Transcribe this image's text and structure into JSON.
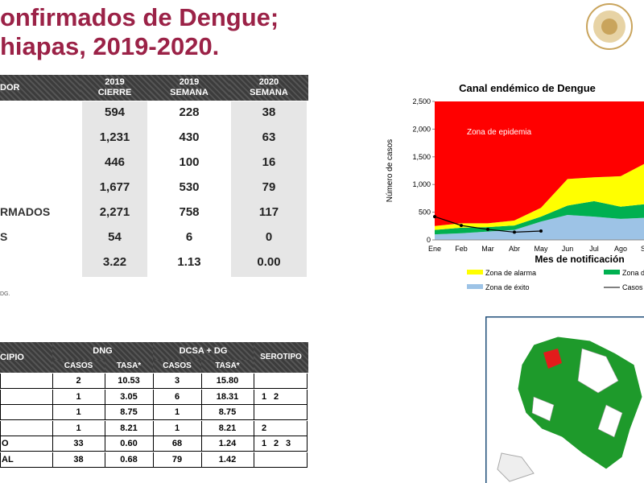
{
  "header": {
    "title_lines": [
      "onfirmados de Dengue;",
      "hiapas, 2019-2020."
    ]
  },
  "table1": {
    "columns": [
      "DOR",
      "2019 CIERRE",
      "2019 SEMANA",
      "2020 SEMANA"
    ],
    "rows": [
      {
        "values": [
          594,
          228,
          38
        ]
      },
      {
        "values": [
          "1,231",
          430,
          63
        ]
      },
      {
        "values": [
          446,
          100,
          16
        ]
      },
      {
        "values": [
          "1,677",
          530,
          79
        ]
      },
      {
        "label": "RMADOS",
        "values": [
          "2,271",
          758,
          117
        ]
      },
      {
        "label": "S",
        "values": [
          54,
          6,
          0
        ]
      },
      {
        "values": [
          "3.22",
          "1.13",
          "0.00"
        ]
      }
    ],
    "note": "DG."
  },
  "table2": {
    "columns": [
      "CIPIO",
      "DNG",
      "DCSA + DG",
      "SEROTIPO"
    ],
    "subcolumns": [
      "CASOS",
      "TASA*",
      "CASOS",
      "TASA*"
    ],
    "rows": [
      {
        "values": [
          2,
          "10.53",
          3,
          "15.80"
        ]
      },
      {
        "values": [
          1,
          "3.05",
          6,
          "18.31"
        ],
        "serotipo": [
          1,
          2
        ]
      },
      {
        "values": [
          1,
          "8.75",
          1,
          "8.75"
        ]
      },
      {
        "values": [
          1,
          "8.21",
          1,
          "8.21"
        ],
        "serotipo": [
          2
        ]
      },
      {
        "label": "O",
        "values": [
          33,
          "0.60",
          68,
          "1.24"
        ],
        "serotipo": [
          1,
          2,
          3
        ]
      },
      {
        "label": "AL",
        "values": [
          38,
          "0.68",
          79,
          "1.42"
        ]
      }
    ]
  },
  "chart_data": {
    "type": "stacked-area",
    "title": "Canal endémico de Dengue",
    "y_label": "Número de casos",
    "x_label": "Mes de notificación",
    "categories": [
      "Ene",
      "Feb",
      "Mar",
      "Abr",
      "May",
      "Jun",
      "Jul",
      "Ago",
      "Sep"
    ],
    "ylim": [
      0,
      2500
    ],
    "yticks": [
      0,
      500,
      {
        "value": 1000,
        "label": "1,000"
      },
      {
        "value": 1500,
        "label": "1,500"
      },
      {
        "value": 2000,
        "label": "2,000"
      },
      {
        "value": 2500,
        "label": "2,500"
      }
    ],
    "series": [
      {
        "name": "Zona de éxito",
        "color": "#9dc3e6",
        "values": [
          100,
          120,
          150,
          180,
          330,
          450,
          420,
          380,
          400
        ]
      },
      {
        "name": "Zona de",
        "color": "#00b050",
        "values": [
          80,
          100,
          80,
          80,
          90,
          170,
          280,
          220,
          250
        ]
      },
      {
        "name": "Zona de alarma",
        "color": "#ffff00",
        "values": [
          70,
          80,
          70,
          90,
          160,
          480,
          430,
          550,
          750
        ]
      },
      {
        "name": "Zona de epidemia",
        "color": "#ff0000",
        "values": [
          2250,
          2200,
          2200,
          2150,
          1920,
          1400,
          1370,
          1350,
          1100
        ]
      }
    ],
    "line": {
      "name": "Casos p",
      "color": "#000000",
      "values": [
        420,
        260,
        190,
        140,
        160,
        null,
        null,
        null,
        null
      ]
    }
  }
}
